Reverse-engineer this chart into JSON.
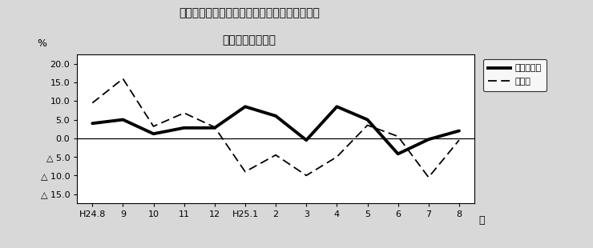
{
  "title_line1": "第２図　所定外労働時間　対前年同月比の推移",
  "title_line2": "（規模５人以上）",
  "xlabel": "月",
  "ylabel": "%",
  "x_labels": [
    "H24.8",
    "9",
    "10",
    "11",
    "12",
    "H25.1",
    "2",
    "3",
    "4",
    "5",
    "6",
    "7",
    "8"
  ],
  "survey_total": [
    4.0,
    5.0,
    1.2,
    2.8,
    2.8,
    8.5,
    6.0,
    -0.5,
    8.5,
    5.0,
    -4.2,
    -0.3,
    2.0
  ],
  "manufacturing": [
    9.5,
    16.0,
    3.2,
    6.8,
    3.0,
    -9.0,
    -4.5,
    -10.0,
    -5.0,
    3.5,
    0.5,
    -10.5,
    -0.5
  ],
  "ylim_min": -17.5,
  "ylim_max": 22.5,
  "yticks": [
    20.0,
    15.0,
    10.0,
    5.0,
    0.0,
    -5.0,
    -10.0,
    -15.0
  ],
  "ytick_labels": [
    "20.0",
    "15.0",
    "10.0",
    "5.0",
    "0.0",
    "△ 5.0",
    "△ 10.0",
    "△ 15.0"
  ],
  "legend_total": "調査産業計",
  "legend_mfg": "製造業",
  "bg_color": "#d8d8d8",
  "plot_bg": "#ffffff",
  "line_color": "#000000"
}
